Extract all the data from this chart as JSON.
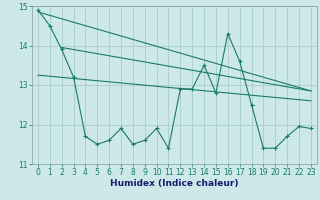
{
  "title": "",
  "xlabel": "Humidex (Indice chaleur)",
  "ylabel": "",
  "bg_color": "#cce8e8",
  "grid_color": "#aacccc",
  "line_color": "#1a7a6a",
  "xlim": [
    -0.5,
    23.5
  ],
  "ylim": [
    11,
    15
  ],
  "yticks": [
    11,
    12,
    13,
    14,
    15
  ],
  "xticks": [
    0,
    1,
    2,
    3,
    4,
    5,
    6,
    7,
    8,
    9,
    10,
    11,
    12,
    13,
    14,
    15,
    16,
    17,
    18,
    19,
    20,
    21,
    22,
    23
  ],
  "series1_x": [
    0,
    1,
    2,
    3,
    4,
    5,
    6,
    7,
    8,
    9,
    10,
    11,
    12,
    13,
    14,
    15,
    16,
    17,
    18,
    19,
    20,
    21,
    22,
    23
  ],
  "series1_y": [
    14.9,
    14.5,
    13.9,
    13.2,
    11.7,
    11.5,
    11.6,
    11.9,
    11.5,
    11.6,
    11.9,
    11.4,
    12.9,
    12.9,
    13.5,
    12.8,
    14.3,
    13.6,
    12.5,
    11.4,
    11.4,
    11.7,
    11.95,
    11.9
  ],
  "trend1_x": [
    0,
    23
  ],
  "trend1_y": [
    14.85,
    12.85
  ],
  "trend2_x": [
    0,
    23
  ],
  "trend2_y": [
    13.25,
    12.6
  ],
  "trend3_x": [
    2,
    23
  ],
  "trend3_y": [
    13.95,
    12.85
  ],
  "xlabel_color": "#1a1a6e",
  "xlabel_fontsize": 6.5,
  "tick_fontsize": 5.5,
  "tick_color": "#1a7a6a"
}
